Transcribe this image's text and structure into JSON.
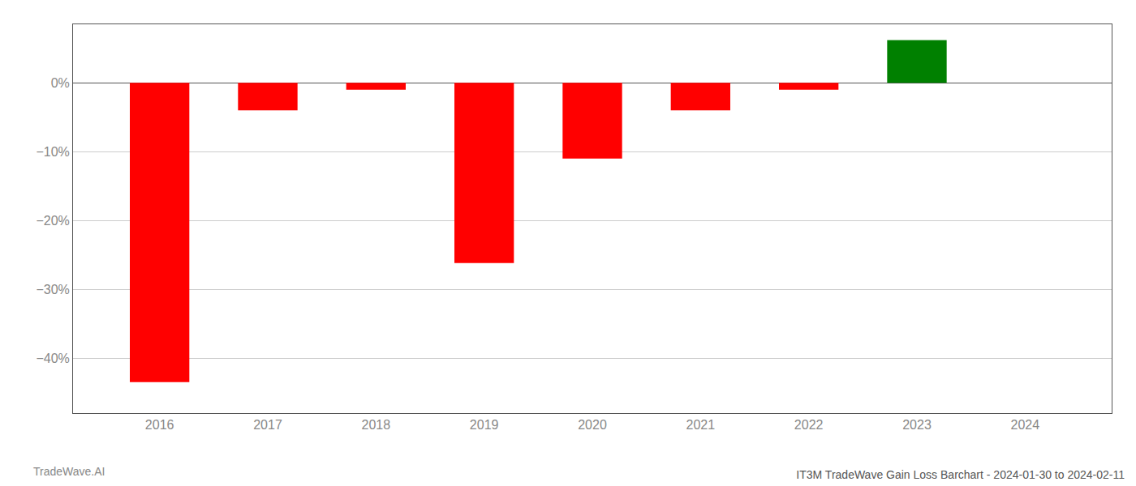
{
  "chart_data": {
    "type": "bar",
    "title": "IT3M TradeWave Gain Loss Barchart - 2024-01-30 to 2024-02-11",
    "annotations": [
      "TradeWave.AI"
    ],
    "x": [
      2016,
      2017,
      2018,
      2019,
      2020,
      2021,
      2022,
      2023,
      2024
    ],
    "values": [
      -0.435,
      -0.04,
      -0.01,
      -0.262,
      -0.11,
      -0.04,
      -0.01,
      0.062,
      0.0
    ],
    "colors": [
      "#ff0000",
      "#ff0000",
      "#ff0000",
      "#ff0000",
      "#ff0000",
      "#ff0000",
      "#ff0000",
      "#008000",
      "#ffffff"
    ],
    "xlim": [
      2015.2,
      2024.8
    ],
    "xticks": [
      2016,
      2017,
      2018,
      2019,
      2020,
      2021,
      2022,
      2023,
      2024
    ],
    "ylim": [
      -0.48,
      0.085
    ],
    "yticks": [
      {
        "value": -0.4,
        "label": "−40%"
      },
      {
        "value": -0.3,
        "label": "−30%"
      },
      {
        "value": -0.2,
        "label": "−20%"
      },
      {
        "value": -0.1,
        "label": "−10%"
      },
      {
        "value": 0,
        "label": "0%"
      }
    ],
    "grid": true
  }
}
